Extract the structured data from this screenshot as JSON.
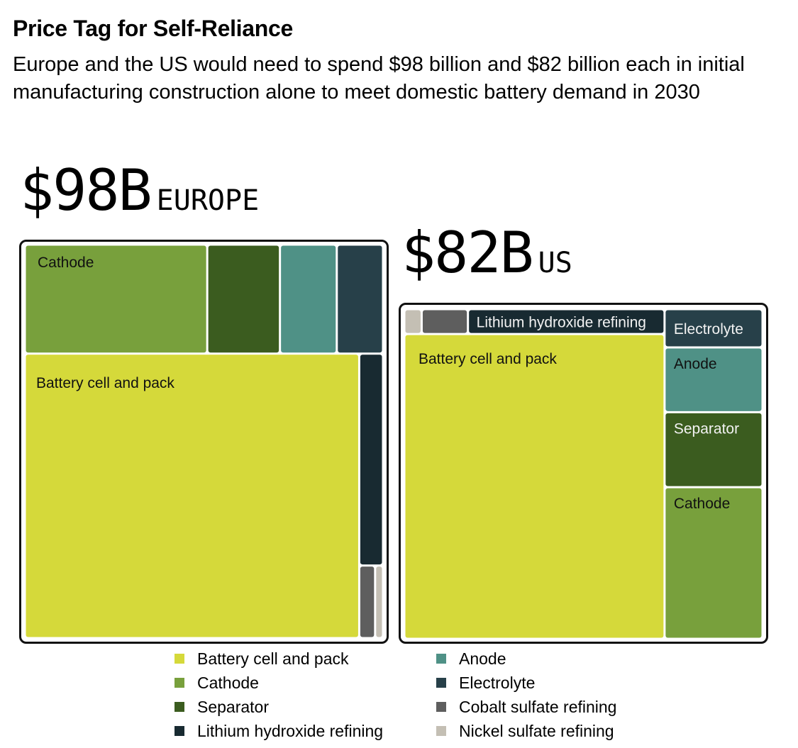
{
  "header": {
    "title": "Price Tag for Self-Reliance",
    "subtitle": "Europe and the US would need to spend $98 billion and $82 billion each in initial manufacturing construction alone to meet domestic battery demand in 2030"
  },
  "colors": {
    "Battery cell and pack": "#d5d93a",
    "Cathode": "#78a03c",
    "Separator": "#3b5c1f",
    "Lithium hydroxide refining": "#182a31",
    "Anode": "#4f9186",
    "Electrolyte": "#274049",
    "Cobalt sulfate refining": "#5e5e5e",
    "Nickel sulfate refining": "#c4bfb4"
  },
  "chart_data": [
    {
      "type": "treemap",
      "region": "EUROPE",
      "total_label": "$98B",
      "unit": "billion USD (approximate, read from area)",
      "segments": [
        {
          "name": "Battery cell and pack",
          "value": 66.0,
          "label": "Battery cell and pack"
        },
        {
          "name": "Cathode",
          "value": 13.8,
          "label": "Cathode"
        },
        {
          "name": "Separator",
          "value": 5.5,
          "label": ""
        },
        {
          "name": "Anode",
          "value": 4.3,
          "label": ""
        },
        {
          "name": "Electrolyte",
          "value": 3.5,
          "label": ""
        },
        {
          "name": "Lithium hydroxide refining",
          "value": 3.5,
          "label": ""
        },
        {
          "name": "Cobalt sulfate refining",
          "value": 0.8,
          "label": ""
        },
        {
          "name": "Nickel sulfate refining",
          "value": 0.4,
          "label": ""
        }
      ]
    },
    {
      "type": "treemap",
      "region": "US",
      "total_label": "$82B",
      "unit": "billion USD (approximate, read from area)",
      "segments": [
        {
          "name": "Battery cell and pack",
          "value": 55.0,
          "label": "Battery cell and pack"
        },
        {
          "name": "Cathode",
          "value": 10.3,
          "label": "Cathode"
        },
        {
          "name": "Separator",
          "value": 5.1,
          "label": "Separator"
        },
        {
          "name": "Anode",
          "value": 4.4,
          "label": "Anode"
        },
        {
          "name": "Electrolyte",
          "value": 2.6,
          "label": "Electrolyte"
        },
        {
          "name": "Lithium hydroxide refining",
          "value": 3.4,
          "label": "Lithium hydroxide refining"
        },
        {
          "name": "Cobalt sulfate refining",
          "value": 0.8,
          "label": ""
        },
        {
          "name": "Nickel sulfate refining",
          "value": 0.3,
          "label": ""
        }
      ]
    }
  ],
  "legend": {
    "left": [
      "Battery cell and pack",
      "Cathode",
      "Separator",
      "Lithium hydroxide refining"
    ],
    "right": [
      "Anode",
      "Electrolyte",
      "Cobalt sulfate refining",
      "Nickel sulfate refining"
    ]
  }
}
